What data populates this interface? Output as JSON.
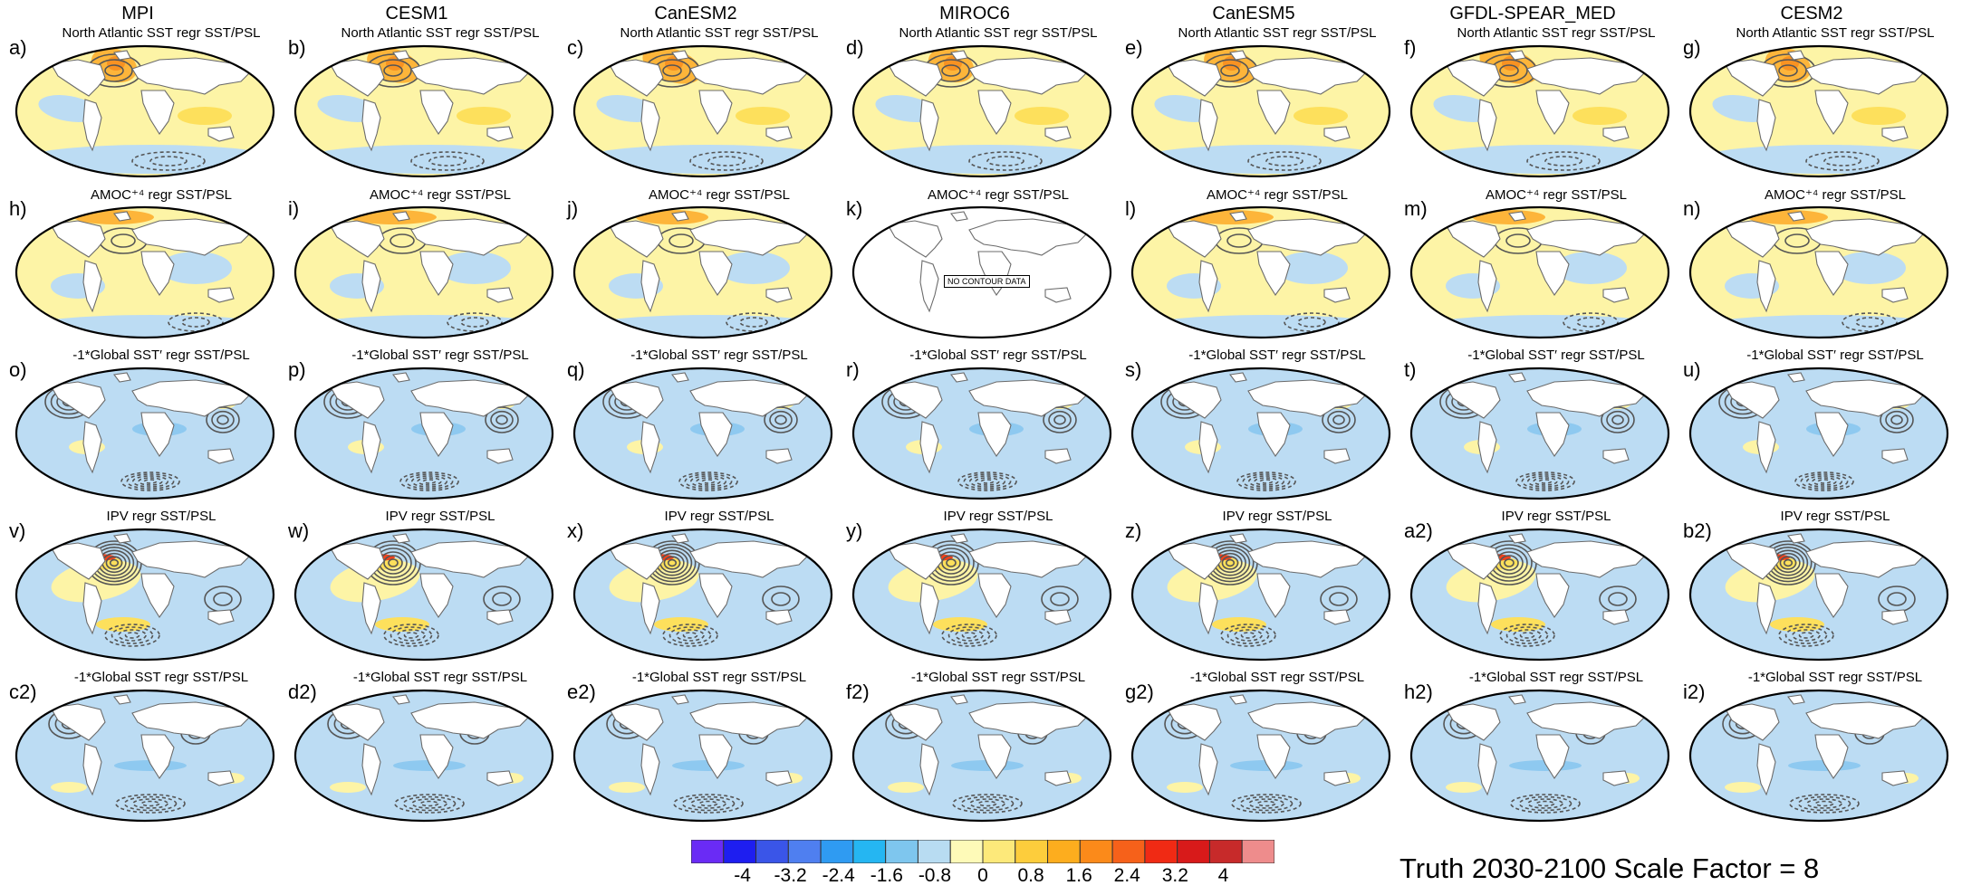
{
  "models": [
    "MPI",
    "CESM1",
    "CanESM2",
    "MIROC6",
    "CanESM5",
    "GFDL-SPEAR_MED",
    "CESM2"
  ],
  "rows": [
    {
      "title": "North Atlantic SST regr SST/PSL",
      "labels": [
        "a)",
        "b)",
        "c)",
        "d)",
        "e)",
        "f)",
        "g)"
      ],
      "pattern": "natl"
    },
    {
      "title": "AMOC⁺⁴ regr SST/PSL",
      "labels": [
        "h)",
        "i)",
        "j)",
        "k)",
        "l)",
        "m)",
        "n)"
      ],
      "pattern": "amoc"
    },
    {
      "title": "-1*Global SST′ regr SST/PSL",
      "labels": [
        "o)",
        "p)",
        "q)",
        "r)",
        "s)",
        "t)",
        "u)"
      ],
      "pattern": "gsstp"
    },
    {
      "title": "IPV regr SST/PSL",
      "labels": [
        "v)",
        "w)",
        "x)",
        "y)",
        "z)",
        "a2)",
        "b2)"
      ],
      "pattern": "ipv"
    },
    {
      "title": "-1*Global SST regr SST/PSL",
      "labels": [
        "c2)",
        "d2)",
        "e2)",
        "f2)",
        "g2)",
        "h2)",
        "i2)"
      ],
      "pattern": "gsst"
    }
  ],
  "no_data_panel": {
    "row": 1,
    "col": 3,
    "text": "NO CONTOUR DATA"
  },
  "colorbar": {
    "colors": [
      "#6a2bf5",
      "#1e1ef0",
      "#3a55e8",
      "#4f7ff0",
      "#2f9bf2",
      "#25b6f2",
      "#7ec6ee",
      "#b8dcf2",
      "#fefab8",
      "#fde97a",
      "#fdcd3c",
      "#fdad1e",
      "#fb8a1a",
      "#f6611a",
      "#f02a14",
      "#d81a1a",
      "#c72a2a",
      "#ee8c8c"
    ],
    "tick_labels": [
      "-4",
      "-3.2",
      "-2.4",
      "-1.6",
      "-0.8",
      "0",
      "0.8",
      "1.6",
      "2.4",
      "3.2",
      "4"
    ]
  },
  "footer": "Truth 2030-2100   Scale Factor = 8"
}
